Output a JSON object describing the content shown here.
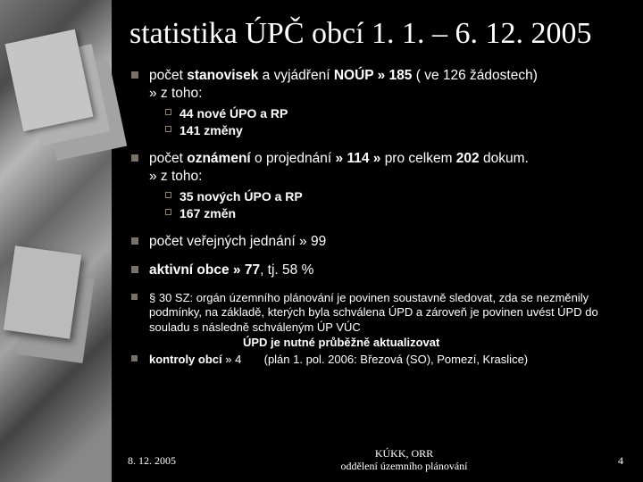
{
  "title": "statistika ÚPČ obcí   1. 1. – 6. 12. 2005",
  "bullets": [
    {
      "prefix": "počet ",
      "main": "stanovisek",
      "mid": " a vyjádření ",
      "main2": "NOÚP",
      "after": " » 185 ",
      "paren": "( ve 126 žádostech)",
      "ztoho": "» z toho:",
      "subs": [
        "44 nové ÚPO a RP",
        "141 změny"
      ]
    },
    {
      "prefix": "počet ",
      "main": "oznámení",
      "mid": " o projednání ",
      "after": "» 114 » ",
      "paren": "pro celkem",
      "main2": " 202 ",
      "tail": "dokum.",
      "ztoho": "» z toho:",
      "subs": [
        "35 nových ÚPO a RP",
        "167 změn"
      ]
    }
  ],
  "line3": "počet veřejných jednání » 99",
  "line4_a": "aktivní obce » 77",
  "line4_b": ", tj. 58 %",
  "para": "§ 30 SZ: orgán územního plánování je povinen soustavně sledovat, zda se nezměnily podmínky, na základě, kterých byla schválena ÚPD a zároveň je povinen uvést ÚPD do souladu s následně schváleným ÚP VÚC",
  "highlight": "ÚPD je nutné průběžně aktualizovat",
  "line6_a": "kontroly obcí",
  "line6_b": " » 4",
  "line6_paren": "(plán 1. pol. 2006: Březová (SO), Pomezí, Kraslice)",
  "footer": {
    "date": "8. 12. 2005",
    "org1": "KÚKK, ORR",
    "org2": "oddělení územního plánování",
    "page": "4"
  }
}
